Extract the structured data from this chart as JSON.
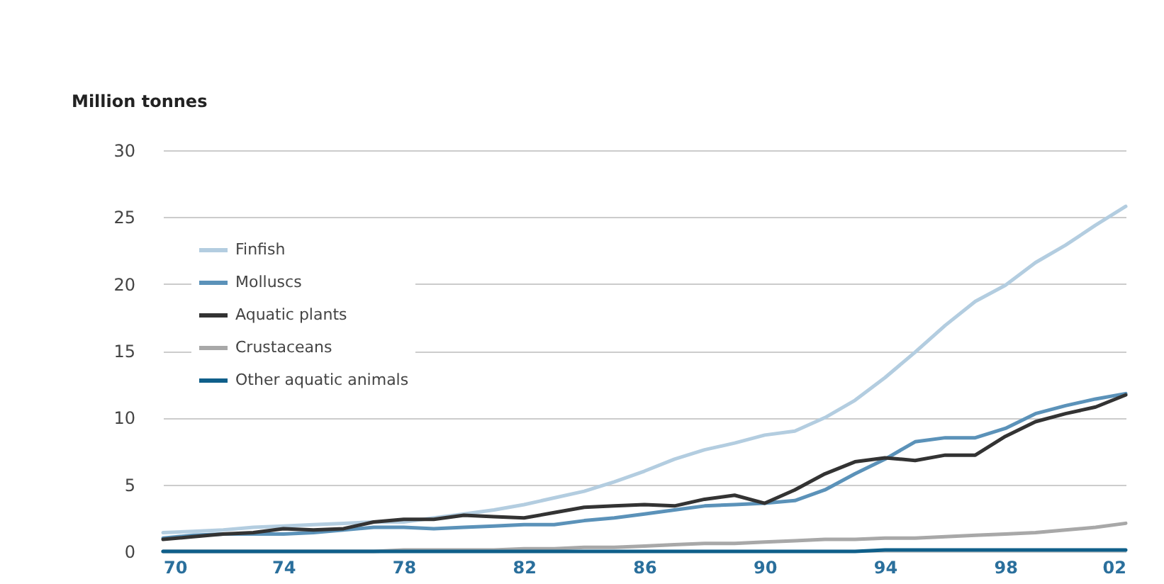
{
  "chart_data": {
    "type": "line",
    "ylabel": "Million tonnes",
    "x": [
      1970,
      1971,
      1972,
      1973,
      1974,
      1975,
      1976,
      1977,
      1978,
      1979,
      1980,
      1981,
      1982,
      1983,
      1984,
      1985,
      1986,
      1987,
      1988,
      1989,
      1990,
      1991,
      1992,
      1993,
      1994,
      1995,
      1996,
      1997,
      1998,
      1999,
      2000,
      2001,
      2002
    ],
    "series": [
      {
        "name": "Finfish",
        "color": "#b3cde0",
        "values": [
          1.4,
          1.5,
          1.6,
          1.8,
          1.9,
          2.0,
          2.1,
          2.2,
          2.2,
          2.5,
          2.8,
          3.1,
          3.5,
          4.0,
          4.5,
          5.2,
          6.0,
          6.9,
          7.6,
          8.1,
          8.7,
          9.0,
          10.0,
          11.3,
          13.0,
          14.9,
          16.9,
          18.7,
          19.9,
          21.6,
          22.9,
          24.4,
          25.8
        ]
      },
      {
        "name": "Molluscs",
        "color": "#5b92b9",
        "values": [
          1.0,
          1.2,
          1.3,
          1.3,
          1.3,
          1.4,
          1.6,
          1.8,
          1.8,
          1.7,
          1.8,
          1.9,
          2.0,
          2.0,
          2.3,
          2.5,
          2.8,
          3.1,
          3.4,
          3.5,
          3.6,
          3.8,
          4.6,
          5.8,
          6.9,
          8.2,
          8.5,
          8.5,
          9.2,
          10.3,
          10.9,
          11.4,
          11.8
        ]
      },
      {
        "name": "Aquatic plants",
        "color": "#333333",
        "values": [
          0.9,
          1.1,
          1.3,
          1.4,
          1.7,
          1.6,
          1.7,
          2.2,
          2.4,
          2.4,
          2.7,
          2.6,
          2.5,
          2.9,
          3.3,
          3.4,
          3.5,
          3.4,
          3.9,
          4.2,
          3.6,
          4.6,
          5.8,
          6.7,
          7.0,
          6.8,
          7.2,
          7.2,
          8.6,
          9.7,
          10.3,
          10.8,
          11.7
        ]
      },
      {
        "name": "Crustaceans",
        "color": "#a8a8a8",
        "values": [
          0.0,
          0.0,
          0.0,
          0.0,
          0.0,
          0.0,
          0.0,
          0.0,
          0.1,
          0.1,
          0.1,
          0.1,
          0.2,
          0.2,
          0.3,
          0.3,
          0.4,
          0.5,
          0.6,
          0.6,
          0.7,
          0.8,
          0.9,
          0.9,
          1.0,
          1.0,
          1.1,
          1.2,
          1.3,
          1.4,
          1.6,
          1.8,
          2.1
        ]
      },
      {
        "name": "Other aquatic animals",
        "color": "#0f5f8a",
        "values": [
          0.0,
          0.0,
          0.0,
          0.0,
          0.0,
          0.0,
          0.0,
          0.0,
          0.0,
          0.0,
          0.0,
          0.0,
          0.0,
          0.0,
          0.0,
          0.0,
          0.0,
          0.0,
          0.0,
          0.0,
          0.0,
          0.0,
          0.0,
          0.0,
          0.1,
          0.1,
          0.1,
          0.1,
          0.1,
          0.1,
          0.1,
          0.1,
          0.1
        ]
      }
    ],
    "xlim": [
      1970,
      2002
    ],
    "xticks": [
      {
        "value": 1970,
        "label": "70"
      },
      {
        "value": 1974,
        "label": "74"
      },
      {
        "value": 1978,
        "label": "78"
      },
      {
        "value": 1982,
        "label": "82"
      },
      {
        "value": 1986,
        "label": "86"
      },
      {
        "value": 1990,
        "label": "90"
      },
      {
        "value": 1994,
        "label": "94"
      },
      {
        "value": 1998,
        "label": "98"
      },
      {
        "value": 2002,
        "label": "02"
      }
    ],
    "ylim": [
      0,
      30
    ],
    "yticks": [
      0,
      5,
      10,
      15,
      20,
      25,
      30
    ],
    "grid": "y",
    "legend": "top left",
    "marker": "none",
    "line_style": "solid"
  }
}
